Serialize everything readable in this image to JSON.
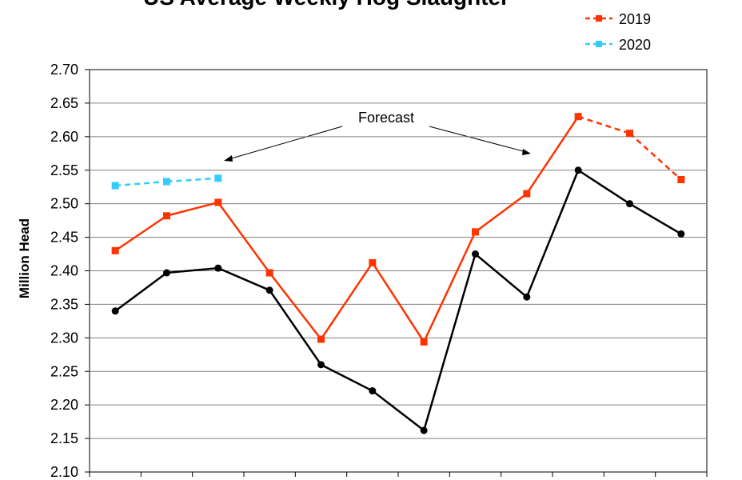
{
  "chart_data": {
    "type": "line",
    "title": "US Average Weekly Hog Slaughter",
    "ylabel": "Million Head",
    "xlabel": "",
    "ylim": [
      2.1,
      2.7
    ],
    "ytick_step": 0.05,
    "grid": true,
    "legend_placement": "top-right",
    "annotation": "Forecast",
    "series": [
      {
        "name": "",
        "color": "#000000",
        "marker": "circle",
        "dashed_from": null,
        "values": [
          2.34,
          2.397,
          2.404,
          2.371,
          2.26,
          2.221,
          2.162,
          2.425,
          2.361,
          2.55,
          2.5,
          2.455
        ]
      },
      {
        "name": "2019",
        "color": "#ff3300",
        "marker": "square",
        "dashed_from": 9,
        "values": [
          2.43,
          2.482,
          2.502,
          2.397,
          2.298,
          2.412,
          2.294,
          2.458,
          2.515,
          2.63,
          2.605,
          2.536
        ]
      },
      {
        "name": "2020",
        "color": "#33ccff",
        "marker": "square",
        "dashed_from": 0,
        "values": [
          2.527,
          2.533,
          2.538
        ]
      }
    ]
  }
}
